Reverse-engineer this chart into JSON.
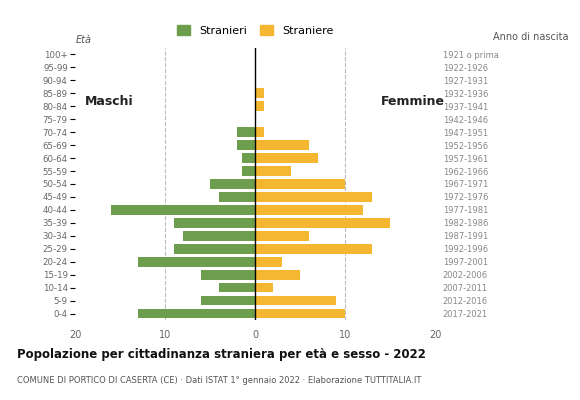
{
  "age_groups": [
    "0-4",
    "5-9",
    "10-14",
    "15-19",
    "20-24",
    "25-29",
    "30-34",
    "35-39",
    "40-44",
    "45-49",
    "50-54",
    "55-59",
    "60-64",
    "65-69",
    "70-74",
    "75-79",
    "80-84",
    "85-89",
    "90-94",
    "95-99",
    "100+"
  ],
  "birth_years": [
    "2017-2021",
    "2012-2016",
    "2007-2011",
    "2002-2006",
    "1997-2001",
    "1992-1996",
    "1987-1991",
    "1982-1986",
    "1977-1981",
    "1972-1976",
    "1967-1971",
    "1962-1966",
    "1957-1961",
    "1952-1956",
    "1947-1951",
    "1942-1946",
    "1937-1941",
    "1932-1936",
    "1927-1931",
    "1922-1926",
    "1921 o prima"
  ],
  "males": [
    13,
    6,
    4,
    6,
    13,
    9,
    8,
    9,
    16,
    4,
    5,
    1.5,
    1.5,
    2,
    2,
    0,
    0,
    0,
    0,
    0,
    0
  ],
  "females": [
    10,
    9,
    2,
    5,
    3,
    13,
    6,
    15,
    12,
    13,
    10,
    4,
    7,
    6,
    1,
    0,
    1,
    1,
    0,
    0,
    0
  ],
  "male_color": "#6d9e4e",
  "female_color": "#f5b731",
  "title": "Popolazione per cittadinanza straniera per età e sesso - 2022",
  "subtitle": "COMUNE DI PORTICO DI CASERTA (CE) · Dati ISTAT 1° gennaio 2022 · Elaborazione TUTTITALIA.IT",
  "legend_male": "Stranieri",
  "legend_female": "Straniere",
  "label_eta": "Età",
  "label_anno": "Anno di nascita",
  "label_males": "Maschi",
  "label_females": "Femmine",
  "xlim": 20,
  "background_color": "#ffffff",
  "bar_height": 0.75,
  "grid_color": "#bbbbbb",
  "axis_label_color": "#555555",
  "birth_year_color": "#888888",
  "tick_color": "#666666"
}
